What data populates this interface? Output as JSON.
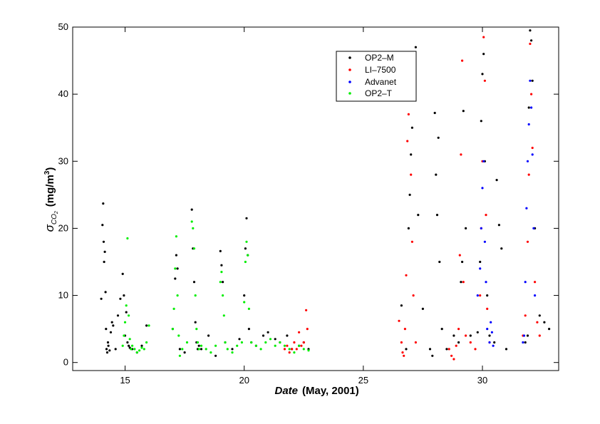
{
  "chart_data": {
    "type": "scatter",
    "xlabel_italic": "Date",
    "xlabel_rest": "(May, 2001)",
    "ylabel_sigma": "σ",
    "ylabel_sub": "CO",
    "ylabel_sub2": "2",
    "ylabel_units_start": "(mg/m",
    "ylabel_units_sup": "3",
    "ylabel_units_end": ")",
    "xlim": [
      12.8,
      33.2
    ],
    "ylim": [
      -1.2,
      50
    ],
    "x_ticks": [
      15,
      20,
      25,
      30
    ],
    "y_ticks": [
      0,
      10,
      20,
      30,
      40,
      50
    ],
    "legend_position": "top-center-right",
    "grid": false,
    "series": [
      {
        "name": "OP2–M",
        "color": "#000000",
        "x": [
          14.0,
          14.05,
          14.08,
          14.1,
          14.12,
          14.15,
          14.18,
          14.2,
          14.22,
          14.25,
          14.28,
          14.3,
          14.35,
          14.4,
          14.45,
          14.5,
          14.6,
          14.7,
          14.8,
          14.9,
          14.95,
          15.0,
          15.05,
          15.1,
          15.15,
          15.2,
          15.3,
          15.5,
          15.7,
          15.9,
          17.0,
          17.1,
          17.15,
          17.2,
          17.3,
          17.5,
          17.8,
          17.85,
          17.9,
          17.95,
          18.0,
          18.05,
          18.1,
          18.2,
          18.5,
          18.8,
          19.0,
          19.05,
          19.1,
          19.2,
          19.5,
          19.8,
          20.0,
          20.05,
          20.1,
          20.15,
          20.2,
          20.3,
          20.5,
          20.8,
          21.0,
          21.3,
          21.5,
          21.8,
          22.0,
          22.3,
          22.5,
          22.7,
          26.6,
          26.8,
          26.9,
          26.95,
          27.0,
          27.05,
          27.1,
          27.15,
          27.2,
          27.3,
          27.5,
          27.8,
          27.9,
          28.0,
          28.05,
          28.1,
          28.15,
          28.2,
          28.3,
          28.5,
          28.8,
          29.0,
          29.1,
          29.15,
          29.2,
          29.3,
          29.5,
          29.8,
          29.9,
          29.95,
          30.0,
          30.05,
          30.1,
          30.2,
          30.3,
          30.5,
          30.6,
          30.7,
          30.8,
          31.0,
          31.8,
          31.9,
          31.95,
          32.0,
          32.05,
          32.1,
          32.2,
          32.4,
          32.6,
          32.8
        ],
        "y": [
          9.5,
          20.5,
          23.7,
          18.0,
          15.0,
          16.5,
          10.5,
          5.0,
          2.0,
          1.5,
          3.0,
          2.5,
          1.8,
          4.5,
          6.0,
          5.5,
          2.0,
          7.0,
          9.5,
          13.2,
          10.0,
          4.0,
          7.5,
          3.0,
          2.5,
          2.2,
          2.0,
          1.5,
          2.5,
          5.5,
          5.0,
          12.5,
          16.0,
          14.0,
          2.0,
          1.5,
          22.8,
          17.0,
          12.0,
          6.0,
          3.0,
          2.0,
          2.5,
          2.0,
          4.0,
          1.0,
          16.6,
          14.5,
          12.0,
          3.0,
          2.0,
          3.5,
          10.0,
          17.0,
          21.5,
          16.0,
          5.0,
          3.0,
          2.5,
          4.0,
          4.5,
          3.5,
          3.0,
          4.0,
          2.0,
          2.5,
          3.0,
          2.0,
          8.5,
          2.0,
          20.0,
          25.0,
          31.0,
          35.0,
          40.5,
          43.0,
          47.0,
          22.0,
          8.0,
          2.0,
          1.0,
          37.2,
          28.0,
          22.0,
          33.5,
          15.0,
          5.0,
          2.0,
          4.0,
          3.0,
          12.0,
          15.0,
          37.5,
          20.0,
          4.0,
          4.5,
          15.0,
          36.0,
          43.0,
          46.0,
          30.0,
          10.0,
          4.0,
          3.0,
          27.2,
          20.5,
          17.0,
          2.0,
          3.0,
          4.0,
          38.0,
          49.5,
          48.0,
          42.0,
          20.0,
          7.0,
          6.0,
          5.0
        ]
      },
      {
        "name": "LI–7500",
        "color": "#ff0000",
        "x": [
          21.7,
          21.8,
          21.9,
          22.0,
          22.1,
          22.2,
          22.3,
          22.4,
          22.5,
          22.6,
          22.65,
          26.5,
          26.6,
          26.65,
          26.7,
          26.75,
          26.8,
          26.85,
          26.9,
          26.95,
          27.0,
          27.05,
          27.1,
          27.2,
          28.6,
          28.7,
          28.8,
          28.9,
          29.0,
          29.05,
          29.1,
          29.15,
          29.2,
          29.3,
          29.5,
          29.7,
          29.9,
          29.95,
          30.0,
          30.05,
          30.1,
          30.15,
          30.2,
          30.3,
          31.7,
          31.8,
          31.9,
          31.95,
          32.0,
          32.05,
          32.1,
          32.2,
          32.3,
          32.4
        ],
        "y": [
          2.0,
          2.5,
          1.5,
          2.0,
          3.0,
          2.0,
          4.5,
          2.5,
          3.0,
          7.8,
          5.0,
          6.2,
          3.0,
          1.5,
          1.0,
          5.0,
          13.0,
          33.0,
          37.0,
          41.0,
          28.0,
          18.0,
          10.0,
          3.0,
          2.0,
          1.0,
          0.5,
          2.5,
          5.0,
          16.0,
          31.0,
          45.0,
          12.0,
          4.0,
          3.0,
          2.0,
          10.0,
          20.0,
          30.0,
          48.5,
          42.0,
          22.0,
          8.0,
          3.0,
          4.0,
          7.0,
          18.0,
          28.0,
          47.5,
          40.0,
          32.0,
          12.0,
          6.0,
          4.0
        ]
      },
      {
        "name": "Advanet",
        "color": "#0000ff",
        "x": [
          29.8,
          29.9,
          29.95,
          30.0,
          30.05,
          30.1,
          30.15,
          30.2,
          30.3,
          30.35,
          30.4,
          30.45,
          31.7,
          31.75,
          31.8,
          31.85,
          31.9,
          31.95,
          32.0,
          32.05,
          32.1,
          32.15,
          32.2
        ],
        "y": [
          10.0,
          14.0,
          20.0,
          26.0,
          30.0,
          18.0,
          12.0,
          5.0,
          3.0,
          6.0,
          4.5,
          2.5,
          3.0,
          4.0,
          12.0,
          23.0,
          30.0,
          35.5,
          42.0,
          38.0,
          31.0,
          20.0,
          10.0
        ]
      },
      {
        "name": "OP2–T",
        "color": "#00ee00",
        "x": [
          14.9,
          14.95,
          15.0,
          15.05,
          15.1,
          15.15,
          15.2,
          15.25,
          15.3,
          15.4,
          15.5,
          15.6,
          15.7,
          15.8,
          15.9,
          16.0,
          17.0,
          17.05,
          17.1,
          17.15,
          17.2,
          17.25,
          17.3,
          17.4,
          17.6,
          17.8,
          17.85,
          17.9,
          17.95,
          18.0,
          18.05,
          18.1,
          18.2,
          18.4,
          18.6,
          18.8,
          19.0,
          19.05,
          19.1,
          19.15,
          19.2,
          19.3,
          19.5,
          19.7,
          19.9,
          20.0,
          20.05,
          20.1,
          20.15,
          20.2,
          20.3,
          20.5,
          20.7,
          20.9,
          21.1,
          21.3,
          21.5,
          21.7,
          21.9,
          22.1,
          22.3,
          22.5,
          22.7
        ],
        "y": [
          2.5,
          4.0,
          6.0,
          8.5,
          18.5,
          7.0,
          3.5,
          2.0,
          2.5,
          2.0,
          1.5,
          1.8,
          2.2,
          2.0,
          3.0,
          5.5,
          5.0,
          8.0,
          14.0,
          18.8,
          10.0,
          4.0,
          1.0,
          2.0,
          3.0,
          21.0,
          20.0,
          17.0,
          10.0,
          5.0,
          3.0,
          2.0,
          2.5,
          2.0,
          1.5,
          2.5,
          12.0,
          13.5,
          10.0,
          7.0,
          3.0,
          2.0,
          1.5,
          2.5,
          3.0,
          9.0,
          15.0,
          18.0,
          16.0,
          8.0,
          3.0,
          2.5,
          2.0,
          3.0,
          3.5,
          2.5,
          3.0,
          2.5,
          2.0,
          1.5,
          2.5,
          2.0,
          1.8
        ]
      }
    ]
  }
}
